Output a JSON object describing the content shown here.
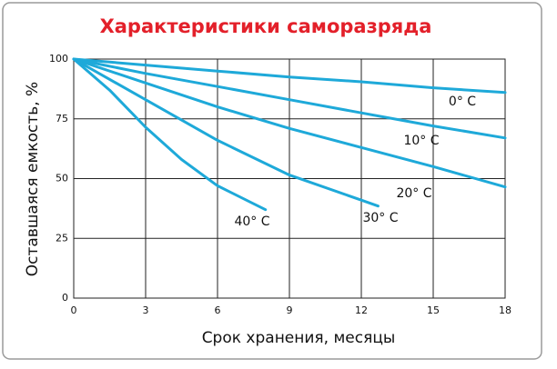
{
  "chart_data": {
    "type": "line",
    "title": "Характеристики саморазряда",
    "x_label": "Срок хранения, месяцы",
    "y_label": "Оставшаяся емкость, %",
    "xlim": [
      0,
      18
    ],
    "xticks": [
      0,
      3,
      6,
      9,
      12,
      15,
      18
    ],
    "ylim": [
      0,
      100
    ],
    "yticks": [
      0,
      25,
      50,
      75,
      100
    ],
    "grid": true,
    "series": [
      {
        "name": "0° C",
        "color": "#1ea9d9",
        "x": [
          0,
          3,
          6,
          9,
          12,
          15,
          18
        ],
        "values": [
          100,
          97.5,
          95,
          92.5,
          90.5,
          88,
          86
        ]
      },
      {
        "name": "10° C",
        "color": "#1ea9d9",
        "x": [
          0,
          3,
          6,
          9,
          12,
          15,
          18
        ],
        "values": [
          100,
          94,
          88.5,
          83,
          77.5,
          72,
          67
        ]
      },
      {
        "name": "20° C",
        "color": "#1ea9d9",
        "x": [
          0,
          3,
          6,
          9,
          12,
          15,
          18
        ],
        "values": [
          100,
          90,
          80,
          71,
          63,
          55,
          46.5
        ]
      },
      {
        "name": "30° C",
        "color": "#1ea9d9",
        "x": [
          0,
          3,
          6,
          9,
          12,
          12.7
        ],
        "values": [
          100,
          83,
          66,
          51.5,
          41,
          38.5
        ]
      },
      {
        "name": "40° C",
        "color": "#1ea9d9",
        "x": [
          0,
          1.5,
          3,
          4.5,
          6,
          8
        ],
        "values": [
          100,
          87,
          71.5,
          58,
          47,
          37
        ]
      }
    ]
  }
}
